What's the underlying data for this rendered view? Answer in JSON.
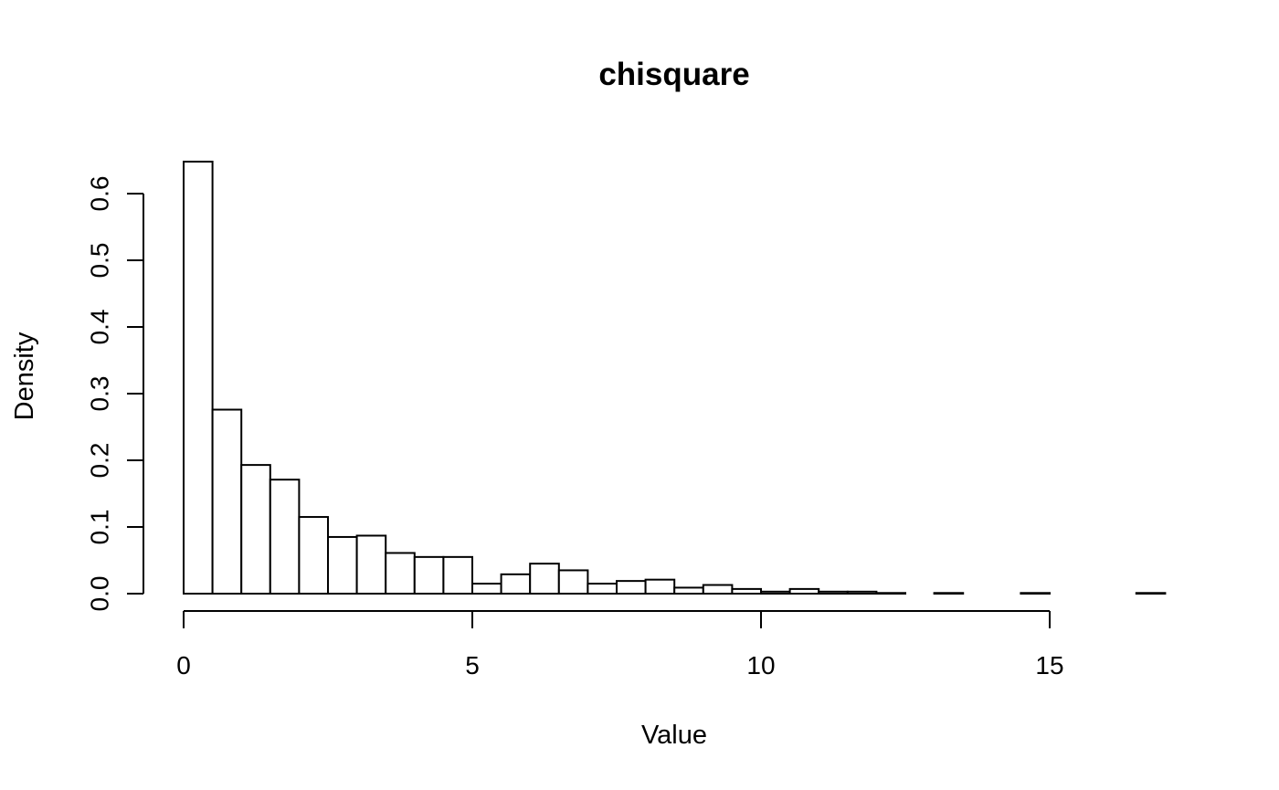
{
  "chart_data": {
    "type": "bar",
    "subtype": "histogram",
    "title": "chisquare",
    "xlabel": "Value",
    "ylabel": "Density",
    "bin_width": 0.5,
    "bin_start": 0,
    "values": [
      0.648,
      0.276,
      0.193,
      0.171,
      0.115,
      0.085,
      0.087,
      0.061,
      0.055,
      0.055,
      0.015,
      0.029,
      0.045,
      0.035,
      0.015,
      0.019,
      0.021,
      0.009,
      0.013,
      0.007,
      0.003,
      0.007,
      0.003,
      0.003,
      0.001,
      0.0,
      0.001,
      0.0,
      0.0,
      0.001,
      0.0,
      0.0,
      0.0,
      0.001
    ],
    "xlim": [
      0,
      17
    ],
    "ylim": [
      0,
      0.65
    ],
    "x_ticks": [
      0,
      5,
      10,
      15
    ],
    "x_tick_labels": [
      "0",
      "5",
      "10",
      "15"
    ],
    "y_ticks": [
      0.0,
      0.1,
      0.2,
      0.3,
      0.4,
      0.5,
      0.6
    ],
    "y_tick_labels": [
      "0.0",
      "0.1",
      "0.2",
      "0.3",
      "0.4",
      "0.5",
      "0.6"
    ],
    "grid": false,
    "bar_fill": "#ffffff",
    "bar_stroke": "#000000"
  }
}
